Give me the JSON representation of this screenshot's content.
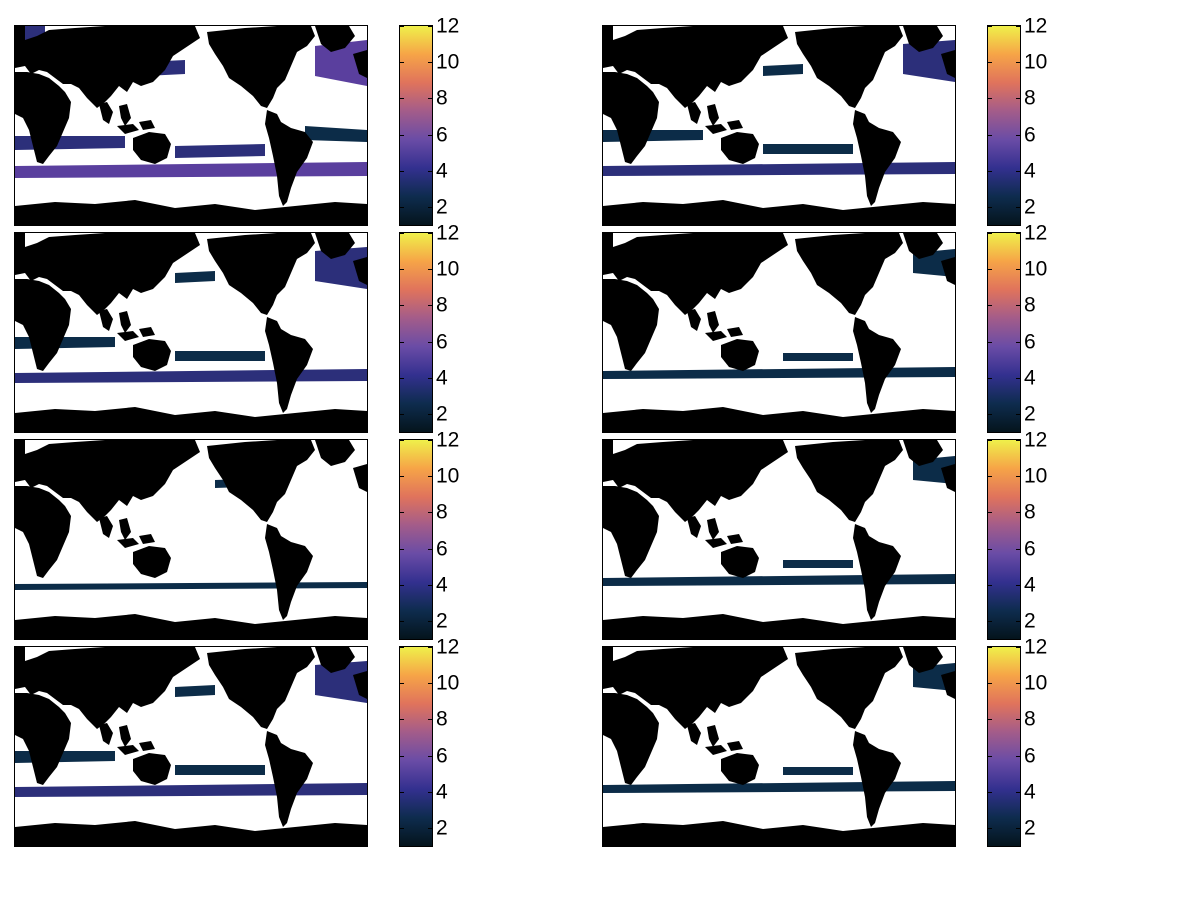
{
  "colorbar": {
    "colormap": "thermal (dark navy -> purple -> orange -> yellow)",
    "stops": [
      "#04141c",
      "#0e2c4e",
      "#33308f",
      "#6a4ca6",
      "#a35c8a",
      "#e0735c",
      "#f6a447",
      "#eff04a"
    ],
    "range": [
      1,
      12
    ],
    "ticks": [
      "2",
      "4",
      "6",
      "8",
      "10",
      "12"
    ]
  },
  "layout": {
    "rows": 4,
    "cols": 2
  },
  "panels": [
    {
      "id": "r1c1",
      "shading": "high"
    },
    {
      "id": "r1c2",
      "shading": "medium"
    },
    {
      "id": "r2c1",
      "shading": "medium"
    },
    {
      "id": "r2c2",
      "shading": "low"
    },
    {
      "id": "r3c1",
      "shading": "very-low"
    },
    {
      "id": "r3c2",
      "shading": "low"
    },
    {
      "id": "r4c1",
      "shading": "medium"
    },
    {
      "id": "r4c2",
      "shading": "low"
    }
  ],
  "colors": {
    "land": "#000000",
    "ocean_masked": "#ffffff",
    "low": "#0c2c48",
    "mid": "#2c2f7a",
    "high": "#5a3f9e"
  }
}
